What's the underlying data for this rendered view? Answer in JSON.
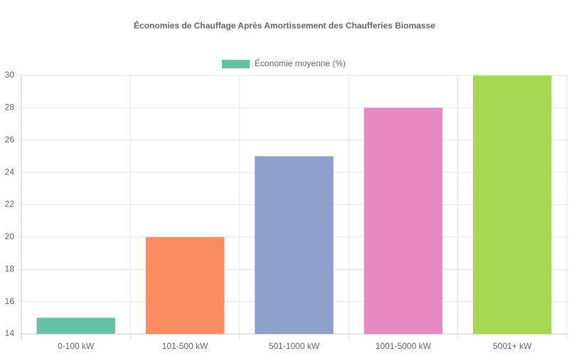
{
  "chart_data": {
    "type": "bar",
    "title": "Économies de Chauffage Après Amortissement des Chaufferies Biomasse",
    "categories": [
      "0-100 kW",
      "101-500 kW",
      "501-1000 kW",
      "1001-5000 kW",
      "5001+ kW"
    ],
    "series": [
      {
        "name": "Économie moyenne (%)",
        "colors": [
          "#66c2a5",
          "#fc8d62",
          "#8da0cb",
          "#e78ac3",
          "#a6d854"
        ],
        "values": [
          15,
          20,
          25,
          28,
          30
        ]
      }
    ],
    "ylim": [
      14,
      30
    ],
    "yticks": [
      14,
      16,
      18,
      20,
      22,
      24,
      26,
      28,
      30
    ],
    "grid": true,
    "legend": "top"
  }
}
